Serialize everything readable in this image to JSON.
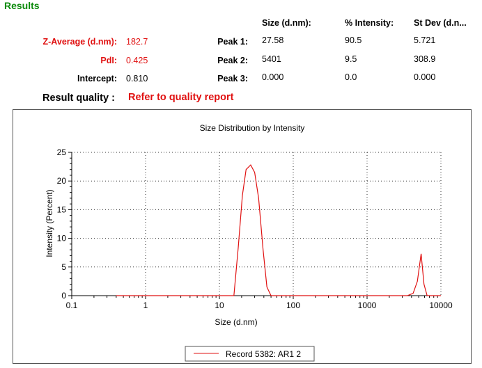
{
  "results": {
    "title": "Results",
    "summary": [
      {
        "label": "Z-Average (d.nm):",
        "value": "182.7",
        "color": "#e01010"
      },
      {
        "label": "PdI:",
        "value": "0.425",
        "color": "#e01010"
      },
      {
        "label": "Intercept:",
        "value": "0.810",
        "color": "#000000"
      }
    ],
    "result_quality_label": "Result quality :",
    "result_quality_value": "Refer to quality report",
    "peak_headers": [
      "Size (d.nm):",
      "% Intensity:",
      "St Dev (d.n..."
    ],
    "peaks": [
      {
        "label": "Peak 1:",
        "size": "27.58",
        "intensity": "90.5",
        "stdev": "5.721"
      },
      {
        "label": "Peak 2:",
        "size": "5401",
        "intensity": "9.5",
        "stdev": "308.9"
      },
      {
        "label": "Peak 3:",
        "size": "0.000",
        "intensity": "0.0",
        "stdev": "0.000"
      }
    ]
  },
  "chart_data": {
    "type": "line",
    "title": "Size Distribution by Intensity",
    "xlabel": "Size (d.nm)",
    "ylabel": "Intensity (Percent)",
    "x_scale": "log",
    "xlim": [
      0.1,
      10000
    ],
    "ylim": [
      0,
      25
    ],
    "x_ticks": [
      "0.1",
      "1",
      "10",
      "100",
      "1000",
      "10000"
    ],
    "y_ticks": [
      "0",
      "5",
      "10",
      "15",
      "20",
      "25"
    ],
    "grid": true,
    "legend_position": "bottom-center",
    "series": [
      {
        "name": "Record 5382: AR1 2",
        "color": "#e01010",
        "x": [
          0.4,
          10,
          15.7,
          18,
          20.5,
          23,
          26.5,
          30,
          34,
          39,
          44,
          50,
          60,
          100,
          1000,
          3500,
          4200,
          4800,
          5400,
          5900,
          6500,
          10000
        ],
        "y": [
          0,
          0,
          0,
          8.5,
          17.5,
          22,
          22.8,
          21.5,
          17,
          8,
          1.5,
          0,
          0,
          0,
          0,
          0,
          0.4,
          2.5,
          7.3,
          2,
          0,
          0
        ]
      }
    ]
  }
}
